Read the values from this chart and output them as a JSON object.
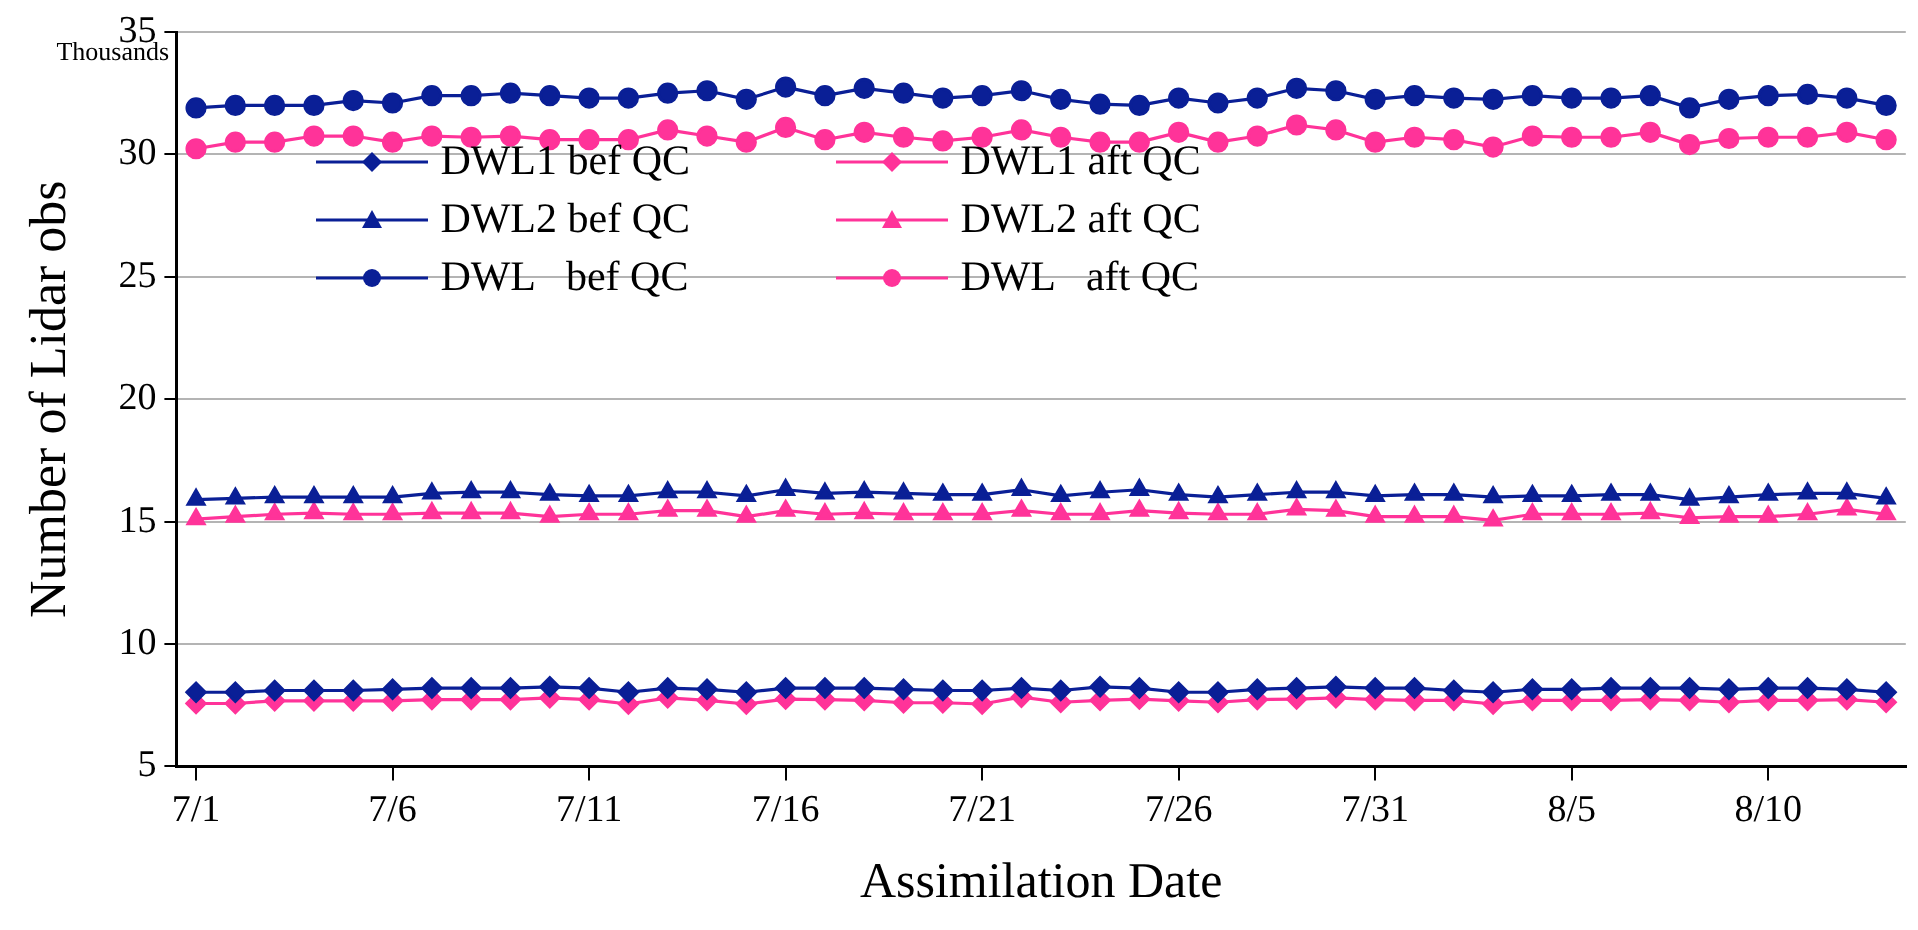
{
  "chart_data": {
    "type": "line",
    "xlabel": "Assimilation Date",
    "ylabel": "Number of Lidar obs",
    "annotations": [
      "Thousands"
    ],
    "categories": [
      "7/1",
      null,
      null,
      null,
      null,
      "7/6",
      null,
      null,
      null,
      null,
      "7/11",
      null,
      null,
      null,
      null,
      "7/16",
      null,
      null,
      null,
      null,
      "7/21",
      null,
      null,
      null,
      null,
      "7/26",
      null,
      null,
      null,
      null,
      "7/31",
      null,
      null,
      null,
      null,
      "8/5",
      null,
      null,
      null,
      null,
      "8/10",
      null,
      null,
      null
    ],
    "ylim": [
      5,
      35
    ],
    "yticks": [
      5,
      10,
      15,
      20,
      25,
      30,
      35
    ],
    "grid": "y",
    "legend": "top left",
    "line_style": "solid",
    "series": [
      {
        "name": "DWL1 bef QC",
        "color": "#0a1f96",
        "marker": "diamond",
        "values": [
          8.03,
          8.03,
          8.1,
          8.1,
          8.1,
          8.15,
          8.2,
          8.2,
          8.2,
          8.25,
          8.2,
          8.03,
          8.2,
          8.15,
          8.03,
          8.2,
          8.2,
          8.2,
          8.15,
          8.1,
          8.1,
          8.2,
          8.1,
          8.25,
          8.2,
          8.03,
          8.03,
          8.15,
          8.2,
          8.25,
          8.2,
          8.2,
          8.1,
          8.03,
          8.15,
          8.15,
          8.2,
          8.2,
          8.2,
          8.15,
          8.2,
          8.2,
          8.15,
          8.03
        ]
      },
      {
        "name": "DWL1 aft QC",
        "color": "#ff3399",
        "marker": "diamond",
        "values": [
          7.57,
          7.57,
          7.68,
          7.68,
          7.68,
          7.68,
          7.73,
          7.73,
          7.73,
          7.8,
          7.73,
          7.55,
          7.8,
          7.7,
          7.55,
          7.75,
          7.73,
          7.7,
          7.6,
          7.6,
          7.55,
          7.83,
          7.62,
          7.7,
          7.75,
          7.68,
          7.62,
          7.73,
          7.75,
          7.8,
          7.73,
          7.7,
          7.7,
          7.55,
          7.7,
          7.7,
          7.7,
          7.73,
          7.7,
          7.62,
          7.7,
          7.7,
          7.73,
          7.62
        ]
      },
      {
        "name": "DWL2 bef QC",
        "color": "#0a1f96",
        "marker": "triangle",
        "values": [
          15.9,
          15.95,
          16.0,
          16.0,
          16.0,
          16.0,
          16.15,
          16.2,
          16.2,
          16.1,
          16.05,
          16.05,
          16.2,
          16.2,
          16.05,
          16.3,
          16.15,
          16.2,
          16.15,
          16.1,
          16.1,
          16.3,
          16.05,
          16.2,
          16.3,
          16.1,
          16.0,
          16.1,
          16.2,
          16.2,
          16.05,
          16.1,
          16.1,
          16.0,
          16.05,
          16.05,
          16.1,
          16.1,
          15.9,
          16.0,
          16.1,
          16.15,
          16.15,
          15.95
        ]
      },
      {
        "name": "DWL2 aft QC",
        "color": "#ff3399",
        "marker": "triangle",
        "values": [
          15.1,
          15.2,
          15.3,
          15.35,
          15.3,
          15.3,
          15.35,
          15.35,
          15.35,
          15.2,
          15.3,
          15.3,
          15.45,
          15.45,
          15.2,
          15.45,
          15.3,
          15.35,
          15.3,
          15.3,
          15.3,
          15.45,
          15.3,
          15.3,
          15.45,
          15.35,
          15.3,
          15.3,
          15.5,
          15.45,
          15.2,
          15.2,
          15.2,
          15.05,
          15.3,
          15.3,
          15.3,
          15.35,
          15.15,
          15.2,
          15.2,
          15.3,
          15.5,
          15.3
        ]
      },
      {
        "name": "DWL   bef QC",
        "color": "#0a1f96",
        "marker": "circle",
        "values": [
          31.9,
          32.0,
          32.0,
          32.0,
          32.2,
          32.1,
          32.4,
          32.4,
          32.5,
          32.4,
          32.3,
          32.3,
          32.5,
          32.6,
          32.25,
          32.75,
          32.4,
          32.7,
          32.5,
          32.3,
          32.4,
          32.6,
          32.25,
          32.05,
          32.0,
          32.3,
          32.1,
          32.3,
          32.7,
          32.6,
          32.25,
          32.4,
          32.3,
          32.25,
          32.4,
          32.3,
          32.3,
          32.4,
          31.9,
          32.25,
          32.4,
          32.45,
          32.3,
          32.0
        ]
      },
      {
        "name": "DWL   aft QC",
        "color": "#ff3399",
        "marker": "circle",
        "values": [
          30.23,
          30.5,
          30.5,
          30.75,
          30.75,
          30.5,
          30.75,
          30.7,
          30.75,
          30.6,
          30.6,
          30.6,
          31.0,
          30.75,
          30.5,
          31.1,
          30.6,
          30.9,
          30.7,
          30.55,
          30.7,
          31.0,
          30.7,
          30.5,
          30.5,
          30.9,
          30.5,
          30.75,
          31.2,
          31.0,
          30.5,
          30.7,
          30.6,
          30.3,
          30.75,
          30.7,
          30.7,
          30.9,
          30.4,
          30.65,
          30.7,
          30.7,
          30.9,
          30.6
        ]
      }
    ]
  }
}
